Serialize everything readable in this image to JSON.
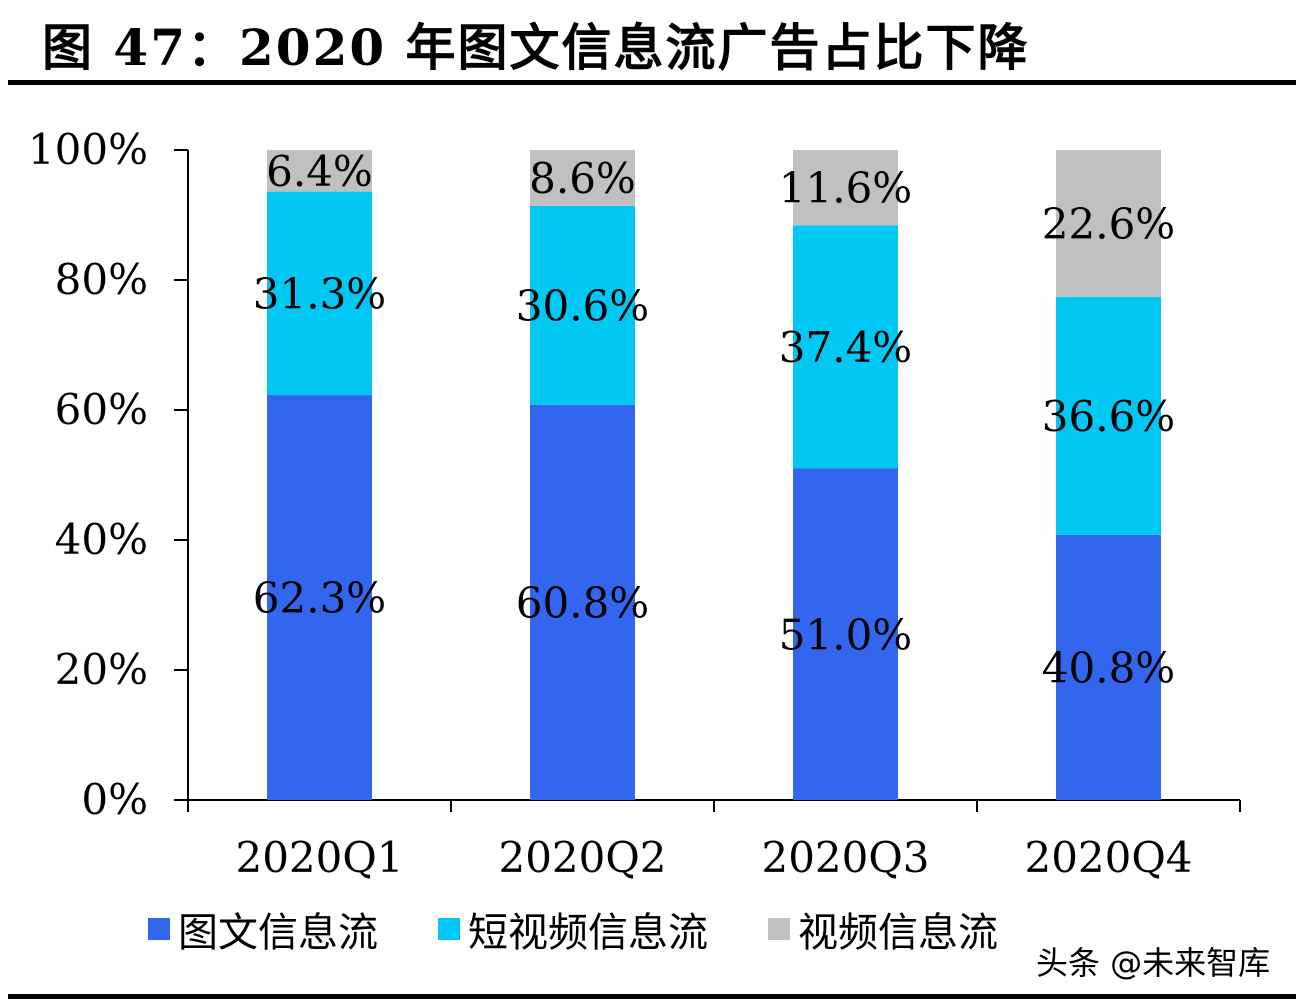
{
  "title": "图 47：2020 年图文信息流广告占比下降",
  "watermark": "头条 @未来智库",
  "chart_data": {
    "type": "bar",
    "stacked": true,
    "categories": [
      "2020Q1",
      "2020Q2",
      "2020Q3",
      "2020Q4"
    ],
    "series": [
      {
        "name": "图文信息流",
        "values": [
          62.3,
          60.8,
          51.0,
          40.8
        ],
        "labels": [
          "62.3%",
          "60.8%",
          "51.0%",
          "40.8%"
        ],
        "color": "#3366ee"
      },
      {
        "name": "短视频信息流",
        "values": [
          31.3,
          30.6,
          37.4,
          36.6
        ],
        "labels": [
          "31.3%",
          "30.6%",
          "37.4%",
          "36.6%"
        ],
        "color": "#00c8f2"
      },
      {
        "name": "视频信息流",
        "values": [
          6.4,
          8.6,
          11.6,
          22.6
        ],
        "labels": [
          "6.4%",
          "8.6%",
          "11.6%",
          "22.6%"
        ],
        "color": "#c0c0c0"
      }
    ],
    "ylim": [
      0,
      100
    ],
    "yticks": [
      "0%",
      "20%",
      "40%",
      "60%",
      "80%",
      "100%"
    ],
    "grid": false,
    "legend": "bottom"
  }
}
